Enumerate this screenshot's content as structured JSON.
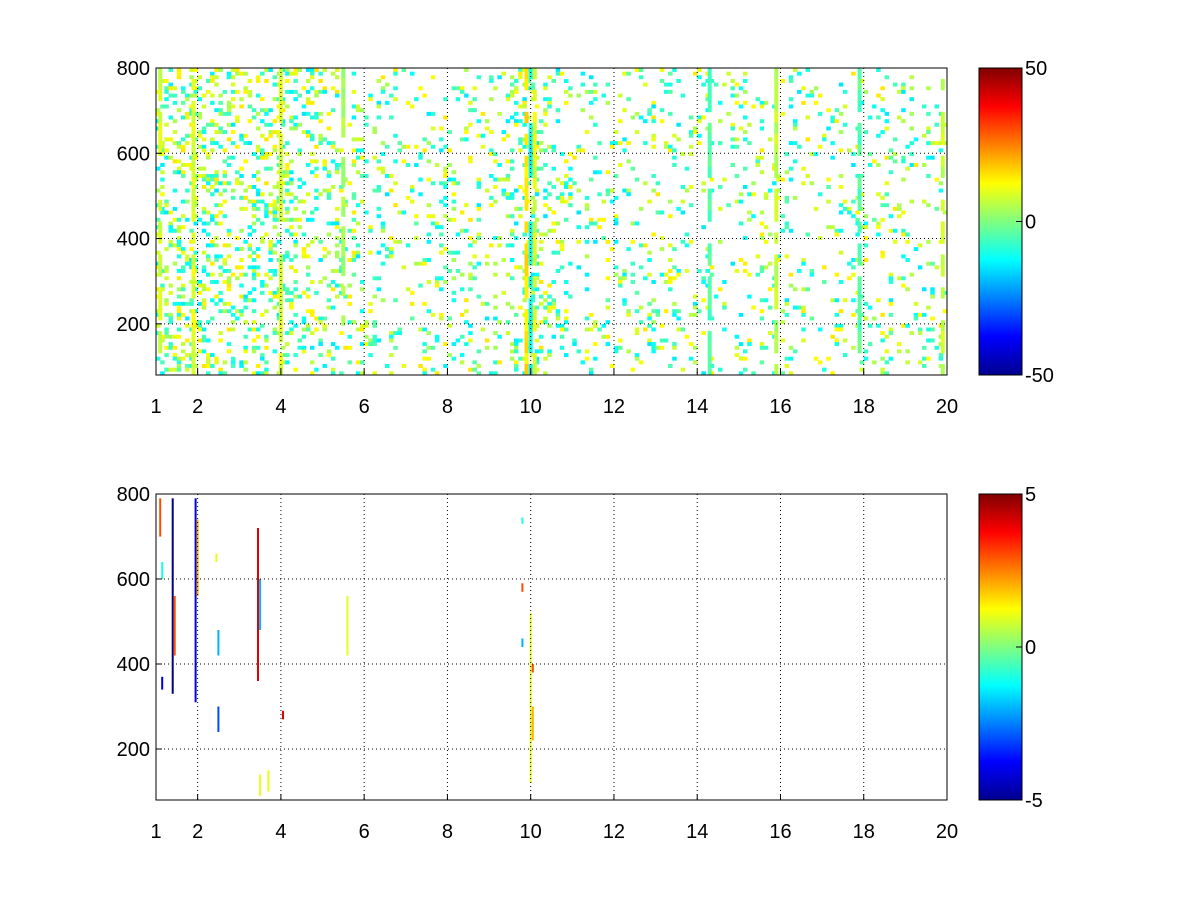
{
  "chart_data": [
    {
      "type": "heatmap",
      "title": "",
      "xlabel": "",
      "ylabel": "",
      "xlim": [
        1,
        20
      ],
      "ylim": [
        80,
        800
      ],
      "x_ticks": [
        1,
        2,
        4,
        6,
        8,
        10,
        12,
        14,
        16,
        18,
        20
      ],
      "y_ticks": [
        200,
        400,
        600,
        800
      ],
      "grid": true,
      "colormap": "jet",
      "clim": [
        -50,
        50
      ],
      "colorbar_ticks": [
        -50,
        0,
        50
      ],
      "background": "#ffffff",
      "density_profile": [
        {
          "x": 1.0,
          "p": 0.55
        },
        {
          "x": 1.5,
          "p": 0.5
        },
        {
          "x": 2.0,
          "p": 0.55
        },
        {
          "x": 3.0,
          "p": 0.45
        },
        {
          "x": 4.0,
          "p": 0.5
        },
        {
          "x": 5.0,
          "p": 0.32
        },
        {
          "x": 6.0,
          "p": 0.25
        },
        {
          "x": 7.0,
          "p": 0.22
        },
        {
          "x": 8.0,
          "p": 0.28
        },
        {
          "x": 9.0,
          "p": 0.17
        },
        {
          "x": 10.0,
          "p": 0.5
        },
        {
          "x": 11.0,
          "p": 0.2
        },
        {
          "x": 12.0,
          "p": 0.18
        },
        {
          "x": 14.0,
          "p": 0.22
        },
        {
          "x": 16.0,
          "p": 0.18
        },
        {
          "x": 18.0,
          "p": 0.2
        },
        {
          "x": 20.0,
          "p": 0.22
        }
      ],
      "dense_columns": [
        {
          "x": 1.1,
          "y": [
            80,
            800
          ],
          "value": 8
        },
        {
          "x": 1.9,
          "y": [
            80,
            800
          ],
          "value": 10
        },
        {
          "x": 4.0,
          "y": [
            80,
            800
          ],
          "value": 9
        },
        {
          "x": 5.5,
          "y": [
            150,
            800
          ],
          "value": 4
        },
        {
          "x": 9.9,
          "y": [
            80,
            800
          ],
          "value": 15
        },
        {
          "x": 10.0,
          "y": [
            80,
            800
          ],
          "value": -12
        },
        {
          "x": 10.1,
          "y": [
            80,
            800
          ],
          "value": 9
        },
        {
          "x": 14.3,
          "y": [
            80,
            800
          ],
          "value": -5
        },
        {
          "x": 15.9,
          "y": [
            80,
            800
          ],
          "value": 6
        },
        {
          "x": 17.9,
          "y": [
            80,
            800
          ],
          "value": -4
        },
        {
          "x": 19.9,
          "y": [
            80,
            800
          ],
          "value": 7
        }
      ]
    },
    {
      "type": "heatmap",
      "title": "",
      "xlabel": "",
      "ylabel": "",
      "xlim": [
        1,
        20
      ],
      "ylim": [
        80,
        800
      ],
      "x_ticks": [
        1,
        2,
        4,
        6,
        8,
        10,
        12,
        14,
        16,
        18,
        20
      ],
      "y_ticks": [
        200,
        400,
        600,
        800
      ],
      "grid": true,
      "colormap": "jet",
      "clim": [
        -5,
        5
      ],
      "colorbar_ticks": [
        -5,
        0,
        5
      ],
      "background": "#ffffff",
      "segments": [
        {
          "x": 1.1,
          "y": [
            700,
            790
          ],
          "value": 3
        },
        {
          "x": 1.15,
          "y": [
            340,
            370
          ],
          "value": -4
        },
        {
          "x": 1.15,
          "y": [
            600,
            640
          ],
          "value": -1
        },
        {
          "x": 1.4,
          "y": [
            330,
            790
          ],
          "value": -5
        },
        {
          "x": 1.45,
          "y": [
            420,
            560
          ],
          "value": 3
        },
        {
          "x": 1.95,
          "y": [
            310,
            790
          ],
          "value": -4
        },
        {
          "x": 2.0,
          "y": [
            560,
            740
          ],
          "value": 2
        },
        {
          "x": 2.45,
          "y": [
            640,
            660
          ],
          "value": 1
        },
        {
          "x": 2.5,
          "y": [
            420,
            480
          ],
          "value": -2
        },
        {
          "x": 2.5,
          "y": [
            240,
            300
          ],
          "value": -3
        },
        {
          "x": 3.45,
          "y": [
            360,
            720
          ],
          "value": 4
        },
        {
          "x": 3.5,
          "y": [
            480,
            600
          ],
          "value": -2
        },
        {
          "x": 3.5,
          "y": [
            90,
            140
          ],
          "value": 1
        },
        {
          "x": 3.7,
          "y": [
            100,
            150
          ],
          "value": 1
        },
        {
          "x": 4.05,
          "y": [
            270,
            290
          ],
          "value": 4
        },
        {
          "x": 5.6,
          "y": [
            420,
            560
          ],
          "value": 1
        },
        {
          "x": 9.8,
          "y": [
            730,
            745
          ],
          "value": -1
        },
        {
          "x": 9.8,
          "y": [
            570,
            590
          ],
          "value": 3
        },
        {
          "x": 9.8,
          "y": [
            440,
            460
          ],
          "value": -2
        },
        {
          "x": 10.0,
          "y": [
            120,
            520
          ],
          "value": 1
        },
        {
          "x": 10.05,
          "y": [
            380,
            400
          ],
          "value": 3
        },
        {
          "x": 10.05,
          "y": [
            220,
            300
          ],
          "value": 2
        }
      ]
    }
  ]
}
